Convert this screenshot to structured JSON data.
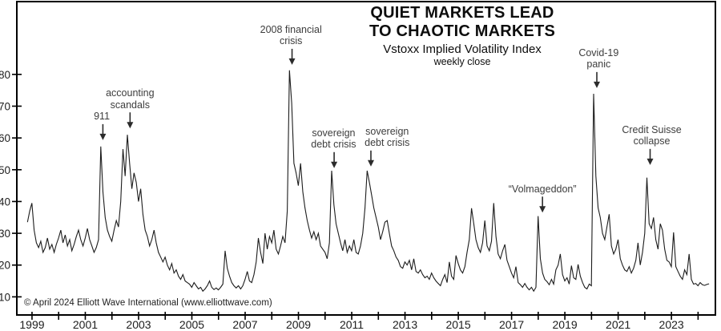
{
  "figure": {
    "title_line1": "QUIET MARKETS LEAD",
    "title_line2": "TO CHAOTIC MARKETS",
    "subtitle": "Vstoxx Implied Volatility Index",
    "frequency": "weekly close",
    "copyright": "© April 2024 Elliott Wave International (www.elliottwave.com)"
  },
  "chart_data": {
    "type": "line",
    "title": "QUIET MARKETS LEAD TO CHAOTIC MARKETS",
    "subtitle": "Vstoxx Implied Volatility Index",
    "frequency": "weekly close",
    "line_color": "#1c1c1c",
    "grid": false,
    "xlim": [
      1998.43,
      2024.65
    ],
    "ylim": [
      4.3,
      102.9
    ],
    "y_axis": {
      "ticks": [
        10,
        20,
        30,
        40,
        50,
        60,
        70,
        80
      ]
    },
    "x_axis": {
      "tick_years": [
        1999,
        2000,
        2001,
        2002,
        2003,
        2004,
        2005,
        2006,
        2007,
        2008,
        2009,
        2010,
        2011,
        2012,
        2013,
        2014,
        2015,
        2016,
        2017,
        2018,
        2019,
        2020,
        2021,
        2022,
        2023,
        2024
      ],
      "labeled_years": [
        1999,
        2001,
        2003,
        2005,
        2007,
        2009,
        2011,
        2013,
        2015,
        2017,
        2019,
        2021,
        2023
      ]
    },
    "x_start": 1998.83,
    "x_step_years": 0.0833333,
    "values": [
      33.5,
      37,
      39.5,
      31,
      27,
      25.5,
      27.5,
      24,
      25.5,
      28.5,
      25,
      26.5,
      24,
      26.5,
      28.5,
      31,
      27,
      29.5,
      26,
      28,
      24.5,
      26.5,
      29,
      31,
      28,
      26,
      28.5,
      31.5,
      28,
      26,
      24,
      25.5,
      28,
      57.3,
      43,
      35,
      31,
      29,
      27.5,
      31,
      34,
      32,
      40,
      56.5,
      48,
      61,
      52,
      44,
      49,
      46,
      40,
      44,
      36,
      31,
      29,
      26,
      28,
      31,
      27,
      24,
      22.5,
      21,
      22.5,
      20,
      18.5,
      20.5,
      17.5,
      18.5,
      16.5,
      15.5,
      17,
      15,
      14.5,
      14,
      13,
      14.5,
      13.5,
      12.5,
      13,
      11.8,
      12.5,
      13.5,
      15,
      13,
      12.3,
      12.8,
      12.2,
      13,
      14,
      24.5,
      19,
      16.5,
      14.5,
      13.5,
      12.8,
      13.5,
      12.5,
      13.5,
      15.5,
      18,
      15,
      14.5,
      17,
      21,
      28.5,
      24,
      20.5,
      30,
      25,
      29,
      27,
      31,
      25,
      23.5,
      26,
      29,
      27,
      37,
      81.3,
      71,
      52,
      49,
      45,
      52,
      43,
      38,
      34,
      31,
      28.5,
      30.5,
      28,
      30,
      26,
      25,
      24,
      22,
      27,
      49.7,
      39,
      33,
      30,
      27,
      24.5,
      28,
      24,
      26,
      24.5,
      28,
      24,
      23.5,
      26,
      30,
      38,
      49.7,
      46,
      42,
      38,
      35,
      32,
      28,
      30.5,
      33.5,
      34,
      30,
      26,
      24.5,
      22.5,
      21.5,
      19.5,
      19,
      21,
      20,
      21.5,
      18.5,
      22,
      18,
      17.5,
      18.5,
      17,
      16,
      16.5,
      15.5,
      17.5,
      16,
      15,
      14.2,
      13.5,
      15.5,
      17,
      14.5,
      21,
      16.5,
      15.5,
      23,
      20.5,
      18.5,
      17.5,
      19.5,
      24,
      28,
      37.9,
      33,
      28,
      25.5,
      24,
      27,
      34,
      26,
      24.5,
      27.5,
      39.5,
      29,
      23.5,
      22,
      24.5,
      26.5,
      21.5,
      19.5,
      17.5,
      16,
      19.5,
      14.5,
      13.8,
      13,
      14.2,
      13,
      12.2,
      13,
      11.8,
      13,
      35.4,
      22,
      17.5,
      15.5,
      14.8,
      13.8,
      15.5,
      14,
      18.5,
      20,
      23.5,
      17,
      15,
      16,
      14,
      19.8,
      16,
      15.5,
      20.2,
      16.5,
      14.5,
      13,
      12.5,
      14,
      13.5,
      73.9,
      48,
      38,
      35,
      30,
      28,
      32,
      36,
      26,
      23.5,
      25,
      28,
      22,
      20,
      18.5,
      18,
      19.5,
      17.5,
      19,
      21.5,
      27,
      20,
      24,
      30,
      47.5,
      33,
      31.5,
      35,
      28,
      25,
      33,
      31,
      25,
      21.5,
      21,
      19.5,
      30.3,
      19.5,
      18,
      16.5,
      15.5,
      18.5,
      17,
      23.5,
      15.5,
      14,
      14.2,
      13.5,
      14.5,
      13.8,
      13.6,
      13.9,
      14.1
    ],
    "annotations": [
      {
        "label": "911",
        "arrow_x": 2001.66,
        "text_x": 2001.62,
        "tip_value": 59.3
      },
      {
        "label": "accounting\nscandals",
        "arrow_x": 2002.68,
        "text_x": 2002.68,
        "tip_value": 63
      },
      {
        "label": "2008 financial\ncrisis",
        "arrow_x": 2008.76,
        "text_x": 2008.72,
        "tip_value": 83
      },
      {
        "label": "sovereign\ndebt crisis",
        "arrow_x": 2010.34,
        "text_x": 2010.32,
        "tip_value": 50.5
      },
      {
        "label": "sovereign\ndebt crisis",
        "arrow_x": 2011.72,
        "text_x": 2012.33,
        "tip_value": 51
      },
      {
        "label": "“Volmageddon”",
        "arrow_x": 2018.16,
        "text_x": 2018.16,
        "tip_value": 36.5
      },
      {
        "label": "Covid-19\npanic",
        "arrow_x": 2020.2,
        "text_x": 2020.27,
        "tip_value": 75.7
      },
      {
        "label": "Credit Suisse\ncollapse",
        "arrow_x": 2022.2,
        "text_x": 2022.26,
        "tip_value": 51.5
      }
    ]
  }
}
